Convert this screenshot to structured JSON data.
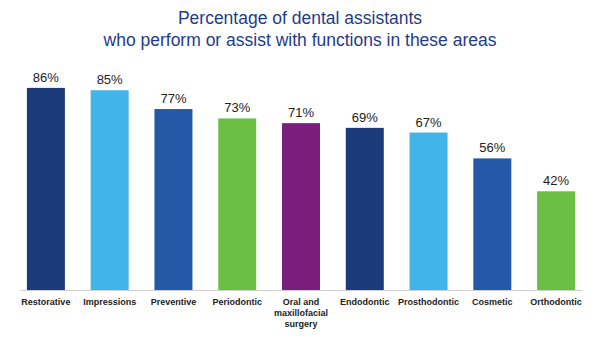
{
  "chart_data": {
    "type": "bar",
    "title": "Percentage of dental assistants\nwho perform or assist with functions in these areas",
    "categories": [
      "Restorative",
      "Impressions",
      "Preventive",
      "Periodontic",
      "Oral and maxillofacial surgery",
      "Endodontic",
      "Prosthodontic",
      "Cosmetic",
      "Orthodontic"
    ],
    "values": [
      86,
      85,
      77,
      73,
      71,
      69,
      67,
      56,
      42
    ],
    "value_labels": [
      "86%",
      "85%",
      "77%",
      "73%",
      "71%",
      "69%",
      "67%",
      "56%",
      "42%"
    ],
    "colors": [
      "#1b3a7a",
      "#41b4e8",
      "#2459a8",
      "#6cbf45",
      "#7b1e7b",
      "#1b3a7a",
      "#41b4e8",
      "#2459a8",
      "#6cbf45"
    ],
    "ylim": [
      0,
      100
    ],
    "data_labels": true,
    "tick_labels": "x",
    "grid": false
  }
}
